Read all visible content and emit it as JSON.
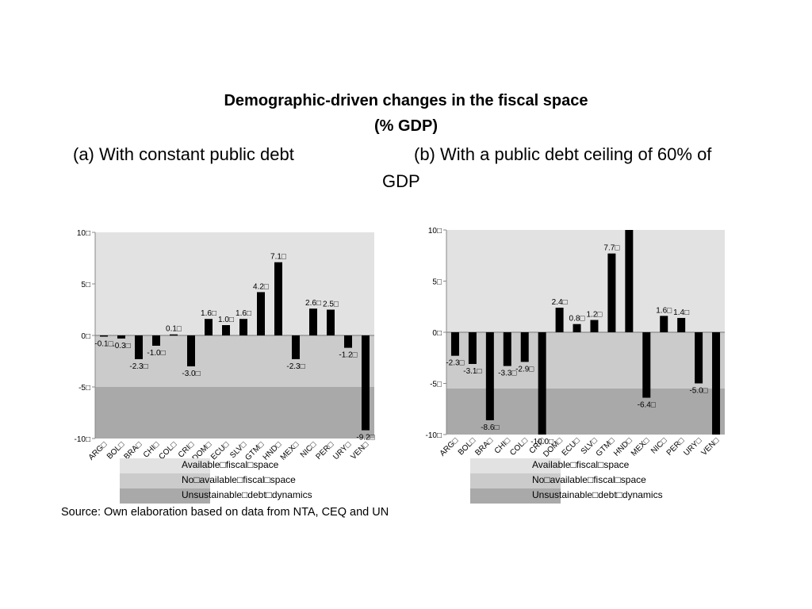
{
  "title": {
    "line1": "Demographic-driven changes in the fiscal space",
    "line2": "(% GDP)"
  },
  "subtitles": {
    "a": "(a) With constant public debt",
    "b_line1": "(b) With a public debt ceiling of 60% of",
    "b_line2": "GDP"
  },
  "source": "Source: Own elaboration based on data from NTA, CEQ and UN",
  "legend": {
    "items": [
      {
        "label": "Available□fiscal□space",
        "color": "#e2e2e2"
      },
      {
        "label": "No□available□fiscal□space",
        "color": "#cbcbcb"
      },
      {
        "label": "Unsustainable□debt□dynamics",
        "color": "#a9a9a9"
      }
    ]
  },
  "colors": {
    "available": "#e2e2e2",
    "not_available": "#cbcbcb",
    "unsustainable": "#a9a9a9",
    "bar": "#000000"
  },
  "chart_data": [
    {
      "type": "bar",
      "title": "(a) With constant public debt",
      "categories": [
        "ARG□",
        "BOL□",
        "BRA□",
        "CHI□",
        "COL□",
        "CRI□",
        "DOM□",
        "ECU□",
        "SLV□",
        "GTM□",
        "HND□",
        "MEX□",
        "NIC□",
        "PER□",
        "URY□",
        "VEN□"
      ],
      "values": [
        -0.1,
        -0.3,
        -2.3,
        -1.0,
        0.1,
        -3.0,
        1.6,
        1.0,
        1.6,
        4.2,
        7.1,
        -2.3,
        2.6,
        2.5,
        -1.2,
        -9.2
      ],
      "data_labels": [
        "-0.1□",
        "-0.3□",
        "-2.3□",
        "-1.0□",
        "0.1□",
        "-3.0□",
        "1.6□",
        "1.0□",
        "1.6□",
        "4.2□",
        "7.1□",
        "-2.3□",
        "2.6□",
        "2.5□",
        "-1.2□",
        "-9.2□"
      ],
      "ylim": [
        -10,
        10
      ],
      "yticks": [
        10,
        5,
        0,
        -5,
        -10
      ],
      "ytick_labels": [
        "10□",
        "5□",
        "0□",
        "-5□",
        "-10□"
      ],
      "bands": {
        "available": [
          0,
          10
        ],
        "not_available": [
          -5,
          0
        ],
        "unsustainable": [
          -10,
          -5
        ]
      },
      "grid": false
    },
    {
      "type": "bar",
      "title": "(b) With a public debt ceiling of 60% of GDP",
      "categories": [
        "ARG□",
        "BOL□",
        "BRA□",
        "CHI□",
        "COL□",
        "CRI□",
        "DOM□",
        "ECU□",
        "SLV□",
        "GTM□",
        "HND□",
        "MEX□",
        "NIC□",
        "PER□",
        "URY□",
        "VEN□"
      ],
      "values": [
        -2.3,
        -3.1,
        -8.6,
        -3.3,
        -2.9,
        -10.0,
        2.4,
        0.8,
        1.2,
        7.7,
        10.0,
        -6.4,
        1.6,
        1.4,
        -5.0,
        -10.0
      ],
      "data_labels": [
        "-2.3□",
        "-3.1□",
        "-8.6□",
        "-3.3□",
        "-2.9□",
        "-10.0□",
        "2.4□",
        "0.8□",
        "1.2□",
        "7.7□",
        "",
        "-6.4□",
        "1.6□",
        "1.4□",
        "-5.0□",
        ""
      ],
      "ylim": [
        -10,
        10
      ],
      "yticks": [
        10,
        5,
        0,
        -5,
        -10
      ],
      "ytick_labels": [
        "10□",
        "5□",
        "0□",
        "-5□",
        "-10□"
      ],
      "bands": {
        "available": [
          0,
          10
        ],
        "not_available": [
          -5.5,
          0
        ],
        "unsustainable": [
          -10,
          -5.5
        ]
      },
      "grid": false
    }
  ]
}
